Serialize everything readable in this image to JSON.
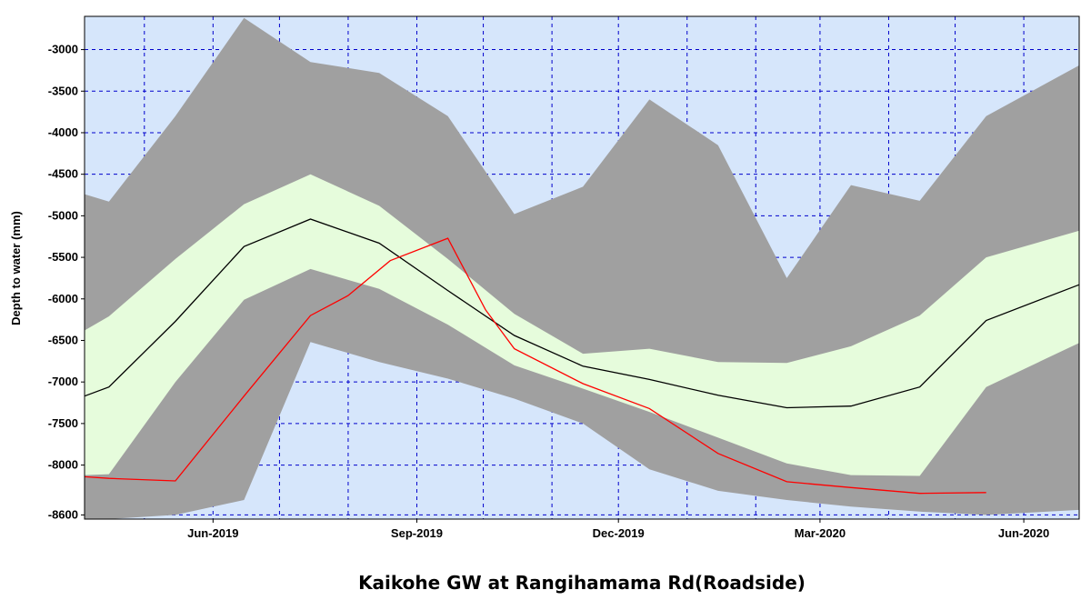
{
  "chart_data": {
    "type": "area",
    "title": "Kaikohe GW at Rangihamama Rd(Roadside)",
    "ylabel": "Depth to water (mm)",
    "xlabel": "",
    "ylim": [
      -8650,
      -2600
    ],
    "xlim": [
      "2019-04-04",
      "2020-06-26"
    ],
    "y_ticks": [
      -3000,
      -3500,
      -4000,
      -4500,
      -5000,
      -5500,
      -6000,
      -6500,
      -7000,
      -7500,
      -8000,
      -8600
    ],
    "x_ticks": [
      {
        "date": "2019-06-01",
        "label": "Jun-2019"
      },
      {
        "date": "2019-09-01",
        "label": "Sep-2019"
      },
      {
        "date": "2019-12-01",
        "label": "Dec-2019"
      },
      {
        "date": "2020-03-01",
        "label": "Mar-2020"
      },
      {
        "date": "2020-06-01",
        "label": "Jun-2020"
      }
    ],
    "x_gridlines": [
      "2019-05-01",
      "2019-06-01",
      "2019-07-01",
      "2019-08-01",
      "2019-09-01",
      "2019-10-01",
      "2019-11-01",
      "2019-12-01",
      "2020-01-01",
      "2020-02-01",
      "2020-03-01",
      "2020-04-01",
      "2020-05-01",
      "2020-06-01"
    ],
    "grid": true,
    "background_color": "#d6e6fb",
    "grid_color": "#0000cc",
    "outer_band_color": "#a0a0a0",
    "inner_band_color": "#e6fcdc",
    "median_color": "#000000",
    "current_color": "#ff0000",
    "bands": {
      "dates": [
        "2019-04-04",
        "2019-04-15",
        "2019-05-15",
        "2019-06-15",
        "2019-07-15",
        "2019-08-15",
        "2019-09-15",
        "2019-10-15",
        "2019-11-15",
        "2019-12-15",
        "2020-01-15",
        "2020-02-15",
        "2020-03-15",
        "2020-04-15",
        "2020-05-15",
        "2020-06-26"
      ],
      "max": [
        -4740,
        -4830,
        -3800,
        -2620,
        -3150,
        -3280,
        -3800,
        -4980,
        -4650,
        -3600,
        -4150,
        -5750,
        -4630,
        -4820,
        -3800,
        -3190
      ],
      "upper": [
        -6380,
        -6210,
        -5520,
        -4860,
        -4500,
        -4880,
        -5520,
        -6180,
        -6660,
        -6600,
        -6760,
        -6770,
        -6570,
        -6200,
        -5500,
        -5180
      ],
      "median": [
        -7170,
        -7060,
        -6270,
        -5370,
        -5040,
        -5330,
        -5900,
        -6440,
        -6810,
        -6970,
        -7160,
        -7310,
        -7290,
        -7060,
        -6260,
        -5830
      ],
      "lower": [
        -8120,
        -8110,
        -7000,
        -6010,
        -5640,
        -5880,
        -6310,
        -6800,
        -7080,
        -7360,
        -7670,
        -7980,
        -8120,
        -8130,
        -7060,
        -6530
      ],
      "min": [
        -8650,
        -8650,
        -8600,
        -8420,
        -6520,
        -6760,
        -6960,
        -7200,
        -7500,
        -8050,
        -8310,
        -8420,
        -8500,
        -8560,
        -8600,
        -8540
      ]
    },
    "series": [
      {
        "dates": [
          "2019-04-04",
          "2019-04-15",
          "2019-05-15",
          "2019-06-15",
          "2019-07-15",
          "2019-08-01",
          "2019-08-20",
          "2019-09-15",
          "2019-10-02",
          "2019-10-15",
          "2019-11-15",
          "2019-12-15",
          "2020-01-15",
          "2020-02-15",
          "2020-03-15",
          "2020-04-15",
          "2020-05-15"
        ],
        "values": [
          -8140,
          -8160,
          -8190,
          -7170,
          -6200,
          -5960,
          -5540,
          -5270,
          -6130,
          -6600,
          -7020,
          -7320,
          -7860,
          -8200,
          -8270,
          -8340,
          -8330
        ]
      }
    ]
  }
}
